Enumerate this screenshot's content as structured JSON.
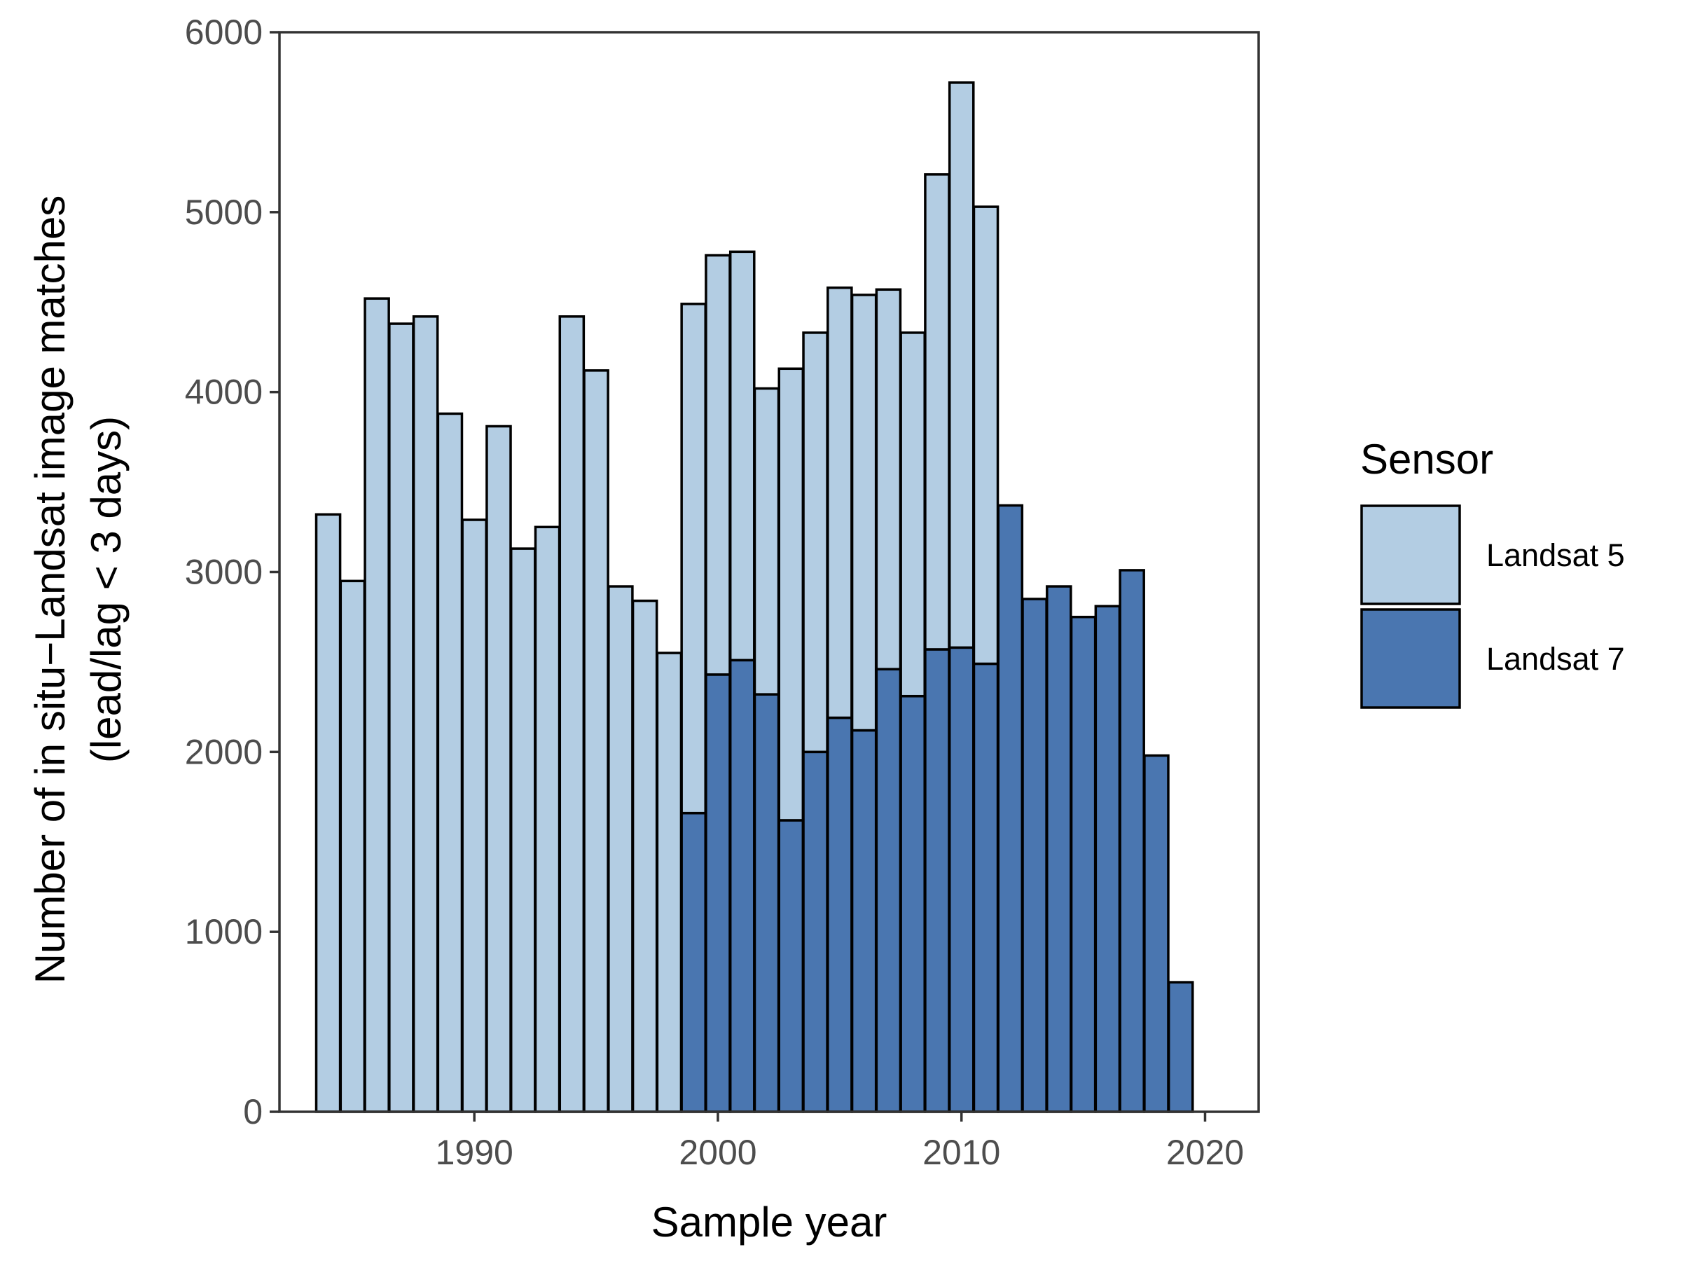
{
  "chart_data": {
    "type": "bar",
    "stacked": true,
    "xlabel": "Sample year",
    "ylabel_lines": [
      "Number of in situ−Landsat image matches",
      "(lead/lag < 3 days)"
    ],
    "xlim": [
      1982,
      2022.2
    ],
    "ylim": [
      0,
      6000
    ],
    "xticks": [
      1990,
      2000,
      2010,
      2020
    ],
    "yticks": [
      0,
      1000,
      2000,
      3000,
      4000,
      5000,
      6000
    ],
    "x": [
      1984,
      1985,
      1986,
      1987,
      1988,
      1989,
      1990,
      1991,
      1992,
      1993,
      1994,
      1995,
      1996,
      1997,
      1998,
      1999,
      2000,
      2001,
      2002,
      2003,
      2004,
      2005,
      2006,
      2007,
      2008,
      2009,
      2010,
      2011,
      2012,
      2013,
      2014,
      2015,
      2016,
      2017,
      2018,
      2019
    ],
    "series": [
      {
        "name": "Landsat 7",
        "color": "#4a76b0",
        "values": [
          0,
          0,
          0,
          0,
          0,
          0,
          0,
          0,
          0,
          0,
          0,
          0,
          0,
          0,
          0,
          1660,
          2430,
          2510,
          2320,
          1620,
          2000,
          2190,
          2120,
          2460,
          2310,
          2570,
          2580,
          2490,
          3370,
          2850,
          2920,
          2750,
          2810,
          3010,
          1980,
          720
        ]
      },
      {
        "name": "Landsat 5",
        "color": "#b3cde3",
        "values": [
          3320,
          2950,
          4520,
          4380,
          4420,
          3880,
          3290,
          3810,
          3130,
          3250,
          4420,
          4120,
          2920,
          2840,
          2550,
          2830,
          2330,
          2270,
          1700,
          2510,
          2330,
          2390,
          2420,
          2110,
          2020,
          2640,
          3140,
          2540,
          0,
          0,
          0,
          0,
          0,
          0,
          0,
          0
        ]
      }
    ],
    "legend": {
      "title": "Sensor",
      "position": "right",
      "entries": [
        {
          "label": "Landsat 5",
          "color": "#b3cde3"
        },
        {
          "label": "Landsat 7",
          "color": "#4a76b0"
        }
      ]
    },
    "grid": false
  }
}
